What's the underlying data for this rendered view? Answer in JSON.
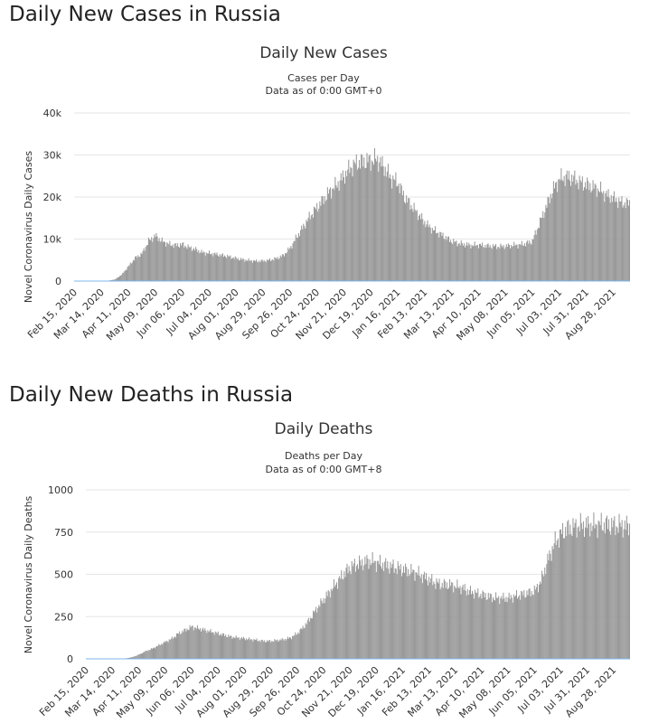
{
  "charts": [
    {
      "heading": "Daily New Cases in Russia",
      "chart_title": "Daily New Cases",
      "subtitle_1": "Cases per Day",
      "subtitle_2": "Data as of 0:00 GMT+0",
      "ylabel": "Novel Coronavirus Daily Cases",
      "yticks": [
        "0",
        "10k",
        "20k",
        "30k",
        "40k"
      ],
      "bar_color": "#999999"
    },
    {
      "heading": "Daily New Deaths in Russia",
      "chart_title": "Daily Deaths",
      "subtitle_1": "Deaths per Day",
      "subtitle_2": "Data as of 0:00 GMT+8",
      "ylabel": "Novel Coronavirus Daily Deaths",
      "yticks": [
        "0",
        "250",
        "500",
        "750",
        "1000"
      ],
      "bar_color": "#999999"
    }
  ],
  "chart_data": [
    {
      "type": "bar",
      "title": "Daily New Cases",
      "subtitle": "Cases per Day — Data as of 0:00 GMT+0",
      "ylabel": "Novel Coronavirus Daily Cases",
      "ylim": [
        0,
        40000
      ],
      "grid": true,
      "x_start": "2020-02-15",
      "x_end": "2021-09-14",
      "xticks": [
        "Feb 15, 2020",
        "Mar 14, 2020",
        "Apr 11, 2020",
        "May 09, 2020",
        "Jun 06, 2020",
        "Jul 04, 2020",
        "Aug 01, 2020",
        "Aug 29, 2020",
        "Sep 26, 2020",
        "Oct 24, 2020",
        "Nov 21, 2020",
        "Dec 19, 2020",
        "Jan 16, 2021",
        "Feb 13, 2021",
        "Mar 13, 2021",
        "Apr 10, 2021",
        "May 08, 2021",
        "Jun 05, 2021",
        "Jul 03, 2021",
        "Jul 31, 2021",
        "Aug 28, 2021"
      ],
      "weekly_x": [
        "2020-02-15",
        "2020-02-22",
        "2020-02-29",
        "2020-03-07",
        "2020-03-14",
        "2020-03-21",
        "2020-03-28",
        "2020-04-04",
        "2020-04-11",
        "2020-04-18",
        "2020-04-25",
        "2020-05-02",
        "2020-05-09",
        "2020-05-16",
        "2020-05-23",
        "2020-05-30",
        "2020-06-06",
        "2020-06-13",
        "2020-06-20",
        "2020-06-27",
        "2020-07-04",
        "2020-07-11",
        "2020-07-18",
        "2020-07-25",
        "2020-08-01",
        "2020-08-08",
        "2020-08-15",
        "2020-08-22",
        "2020-08-29",
        "2020-09-05",
        "2020-09-12",
        "2020-09-19",
        "2020-09-26",
        "2020-10-03",
        "2020-10-10",
        "2020-10-17",
        "2020-10-24",
        "2020-10-31",
        "2020-11-07",
        "2020-11-14",
        "2020-11-21",
        "2020-11-28",
        "2020-12-05",
        "2020-12-12",
        "2020-12-19",
        "2020-12-26",
        "2021-01-02",
        "2021-01-09",
        "2021-01-16",
        "2021-01-23",
        "2021-01-30",
        "2021-02-06",
        "2021-02-13",
        "2021-02-20",
        "2021-02-27",
        "2021-03-06",
        "2021-03-13",
        "2021-03-20",
        "2021-03-27",
        "2021-04-03",
        "2021-04-10",
        "2021-04-17",
        "2021-04-24",
        "2021-05-01",
        "2021-05-08",
        "2021-05-15",
        "2021-05-22",
        "2021-05-29",
        "2021-06-05",
        "2021-06-12",
        "2021-06-19",
        "2021-06-26",
        "2021-07-03",
        "2021-07-10",
        "2021-07-17",
        "2021-07-24",
        "2021-07-31",
        "2021-08-07",
        "2021-08-14",
        "2021-08-21",
        "2021-08-28",
        "2021-09-04",
        "2021-09-11"
      ],
      "weekly_values": [
        0,
        0,
        0,
        5,
        20,
        80,
        400,
        1500,
        3500,
        5500,
        6500,
        9500,
        10800,
        9500,
        8800,
        8500,
        8700,
        8000,
        7500,
        6800,
        6600,
        6400,
        6100,
        5800,
        5400,
        5100,
        4900,
        4750,
        4800,
        5000,
        5400,
        6100,
        7800,
        10500,
        13000,
        15500,
        17500,
        19500,
        21500,
        23000,
        25000,
        27000,
        28200,
        28500,
        28700,
        29000,
        27000,
        24500,
        23500,
        20000,
        18000,
        16000,
        14000,
        12500,
        11500,
        10500,
        9500,
        9000,
        8700,
        8500,
        8600,
        8400,
        8300,
        8200,
        8300,
        8500,
        8600,
        8900,
        9500,
        13500,
        17500,
        21500,
        24300,
        24800,
        24500,
        23600,
        23000,
        22400,
        21700,
        20500,
        19800,
        18800,
        18500
      ]
    },
    {
      "type": "bar",
      "title": "Daily Deaths",
      "subtitle": "Deaths per Day — Data as of 0:00 GMT+8",
      "ylabel": "Novel Coronavirus Daily Deaths",
      "ylim": [
        0,
        1000
      ],
      "grid": true,
      "x_start": "2020-02-15",
      "x_end": "2021-09-14",
      "xticks": [
        "Feb 15, 2020",
        "Mar 14, 2020",
        "Apr 11, 2020",
        "May 09, 2020",
        "Jun 06, 2020",
        "Jul 04, 2020",
        "Aug 01, 2020",
        "Aug 29, 2020",
        "Sep 26, 2020",
        "Oct 24, 2020",
        "Nov 21, 2020",
        "Dec 19, 2020",
        "Jan 16, 2021",
        "Feb 13, 2021",
        "Mar 13, 2021",
        "Apr 10, 2021",
        "May 08, 2021",
        "Jun 05, 2021",
        "Jul 03, 2021",
        "Jul 31, 2021",
        "Aug 28, 2021"
      ],
      "weekly_x": [
        "2020-02-15",
        "2020-02-22",
        "2020-02-29",
        "2020-03-07",
        "2020-03-14",
        "2020-03-21",
        "2020-03-28",
        "2020-04-04",
        "2020-04-11",
        "2020-04-18",
        "2020-04-25",
        "2020-05-02",
        "2020-05-09",
        "2020-05-16",
        "2020-05-23",
        "2020-05-30",
        "2020-06-06",
        "2020-06-13",
        "2020-06-20",
        "2020-06-27",
        "2020-07-04",
        "2020-07-11",
        "2020-07-18",
        "2020-07-25",
        "2020-08-01",
        "2020-08-08",
        "2020-08-15",
        "2020-08-22",
        "2020-08-29",
        "2020-09-05",
        "2020-09-12",
        "2020-09-19",
        "2020-09-26",
        "2020-10-03",
        "2020-10-10",
        "2020-10-17",
        "2020-10-24",
        "2020-10-31",
        "2020-11-07",
        "2020-11-14",
        "2020-11-21",
        "2020-11-28",
        "2020-12-05",
        "2020-12-12",
        "2020-12-19",
        "2020-12-26",
        "2021-01-02",
        "2021-01-09",
        "2021-01-16",
        "2021-01-23",
        "2021-01-30",
        "2021-02-06",
        "2021-02-13",
        "2021-02-20",
        "2021-02-27",
        "2021-03-06",
        "2021-03-13",
        "2021-03-20",
        "2021-03-27",
        "2021-04-03",
        "2021-04-10",
        "2021-04-17",
        "2021-04-24",
        "2021-05-01",
        "2021-05-08",
        "2021-05-15",
        "2021-05-22",
        "2021-05-29",
        "2021-06-05",
        "2021-06-12",
        "2021-06-19",
        "2021-06-26",
        "2021-07-03",
        "2021-07-10",
        "2021-07-17",
        "2021-07-24",
        "2021-07-31",
        "2021-08-07",
        "2021-08-14",
        "2021-08-21",
        "2021-08-28",
        "2021-09-04",
        "2021-09-11"
      ],
      "weekly_values": [
        0,
        0,
        0,
        0,
        0,
        1,
        3,
        10,
        25,
        45,
        60,
        80,
        100,
        120,
        150,
        170,
        190,
        180,
        170,
        160,
        150,
        140,
        130,
        125,
        120,
        115,
        110,
        105,
        105,
        110,
        115,
        125,
        150,
        190,
        240,
        300,
        350,
        400,
        450,
        500,
        540,
        560,
        570,
        580,
        570,
        560,
        550,
        540,
        530,
        520,
        510,
        490,
        470,
        450,
        440,
        440,
        430,
        420,
        400,
        390,
        380,
        370,
        360,
        360,
        360,
        370,
        380,
        390,
        400,
        460,
        580,
        680,
        740,
        770,
        780,
        790,
        790,
        790,
        795,
        795,
        790,
        790,
        785
      ]
    }
  ]
}
